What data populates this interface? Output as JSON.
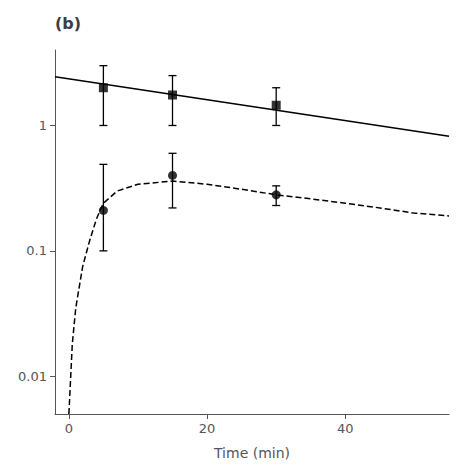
{
  "chart_data": {
    "type": "scatter",
    "title": "(b)",
    "xlabel": "Time (min)",
    "xlim": [
      -2,
      55
    ],
    "xticks": [
      0,
      20,
      40
    ],
    "ylim": [
      0.005,
      4.0
    ],
    "yticks": [
      0.01,
      0.1,
      1
    ],
    "log": "y",
    "grid": false,
    "color": "#000000",
    "series": [
      {
        "type": "scatter",
        "marker": "square",
        "x": [
          5,
          15,
          30
        ],
        "values": [
          2.0,
          1.75,
          1.45
        ],
        "yerr_lo": [
          1.0,
          0.75,
          0.45
        ],
        "yerr_hi": [
          1.0,
          0.75,
          0.55
        ]
      },
      {
        "type": "line",
        "line_style": "solid",
        "x": [
          -2,
          55
        ],
        "values": [
          2.45,
          0.82
        ]
      },
      {
        "type": "scatter",
        "marker": "circle",
        "x": [
          5,
          15,
          30
        ],
        "values": [
          0.21,
          0.4,
          0.28
        ],
        "yerr_lo": [
          0.11,
          0.18,
          0.05
        ],
        "yerr_hi": [
          0.28,
          0.2,
          0.05
        ]
      },
      {
        "type": "line",
        "line_style": "dashed",
        "x": [
          0.01,
          0.5,
          1.0,
          2.0,
          3.0,
          4.0,
          5.0,
          7.0,
          10.0,
          15.0,
          20.0,
          25.0,
          30.0,
          35.0,
          40.0,
          45.0,
          50.0,
          55.0
        ],
        "values": [
          0.005,
          0.018,
          0.035,
          0.075,
          0.12,
          0.18,
          0.24,
          0.3,
          0.34,
          0.36,
          0.34,
          0.31,
          0.28,
          0.26,
          0.24,
          0.22,
          0.2,
          0.19
        ]
      }
    ]
  }
}
